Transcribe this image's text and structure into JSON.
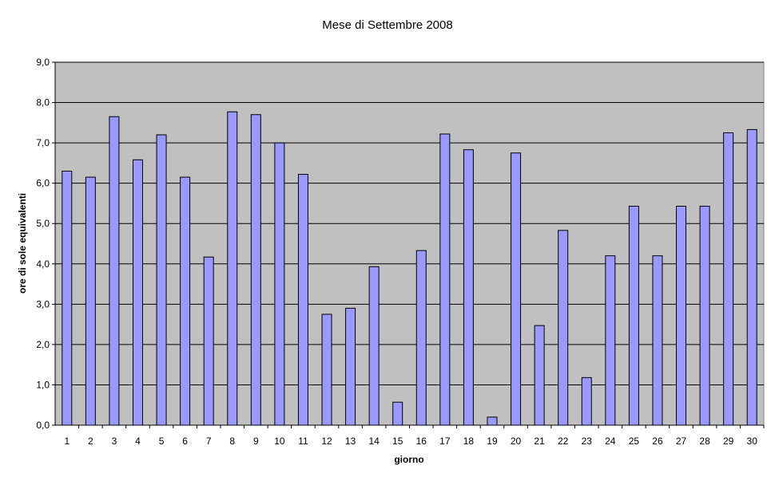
{
  "chart_data": {
    "type": "bar",
    "title": "Mese di Settembre 2008",
    "xlabel": "giorno",
    "ylabel": "ore di sole equivalenti",
    "ylim": [
      0,
      9
    ],
    "y_ticks": [
      "0,0",
      "1,0",
      "2,0",
      "3,0",
      "4,0",
      "5,0",
      "6,0",
      "7,0",
      "8,0",
      "9,0"
    ],
    "grid": true,
    "legend": "none",
    "categories": [
      "1",
      "2",
      "3",
      "4",
      "5",
      "6",
      "7",
      "8",
      "9",
      "10",
      "11",
      "12",
      "13",
      "14",
      "15",
      "16",
      "17",
      "18",
      "19",
      "20",
      "21",
      "22",
      "23",
      "24",
      "25",
      "26",
      "27",
      "28",
      "29",
      "30"
    ],
    "values": [
      6.3,
      6.15,
      7.65,
      6.58,
      7.2,
      6.15,
      4.17,
      7.77,
      7.7,
      7.0,
      6.22,
      2.75,
      2.9,
      3.93,
      0.57,
      4.33,
      7.22,
      6.83,
      0.2,
      6.75,
      2.47,
      4.83,
      1.18,
      4.2,
      5.43,
      4.2,
      5.43,
      5.43,
      7.25,
      7.33
    ],
    "colors": {
      "bar_fill": "#9999ff",
      "bar_stroke": "#000000",
      "plot_background": "#c0c0c0",
      "gridline": "#000000"
    }
  }
}
